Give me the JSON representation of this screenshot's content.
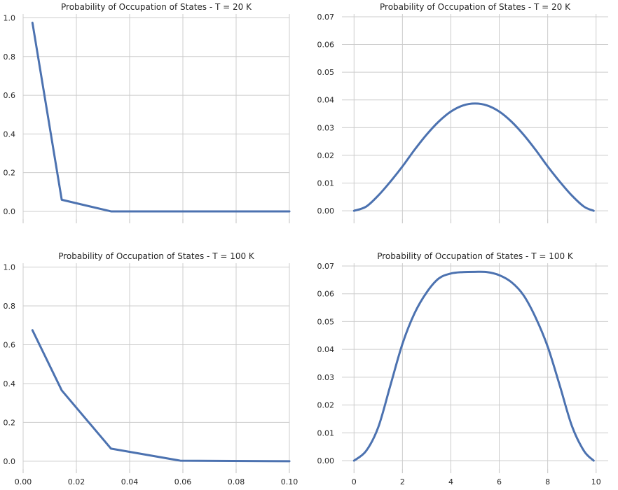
{
  "chart_data": [
    {
      "type": "line",
      "title": "Probability of Occupation of States - T = 20 K",
      "xlim": [
        0,
        0.1
      ],
      "ylim": [
        -0.04,
        1.02
      ],
      "x_ticks": [
        0,
        0.02,
        0.04,
        0.06,
        0.08,
        0.1
      ],
      "x_tick_labels": [],
      "y_ticks": [
        0.0,
        0.2,
        0.4,
        0.6,
        0.8,
        1.0
      ],
      "y_tick_labels": [
        "0.0",
        "0.2",
        "0.4",
        "0.6",
        "0.8",
        "1.0"
      ],
      "grid": true,
      "color": "#4c72b0",
      "x": [
        0.0035,
        0.0145,
        0.033,
        0.059,
        0.1
      ],
      "y": [
        0.975,
        0.06,
        0.0,
        0.0,
        0.0
      ]
    },
    {
      "type": "line",
      "title": "Probability of Occupation of States - T = 20 K",
      "xlim": [
        -0.5,
        10.5
      ],
      "ylim": [
        -0.003,
        0.071
      ],
      "x_ticks": [
        0,
        2,
        4,
        6,
        8,
        10
      ],
      "x_tick_labels": [],
      "y_ticks": [
        0.0,
        0.01,
        0.02,
        0.03,
        0.04,
        0.05,
        0.06,
        0.07
      ],
      "y_tick_labels": [
        "0.00",
        "0.01",
        "0.02",
        "0.03",
        "0.04",
        "0.05",
        "0.06",
        "0.07"
      ],
      "grid": true,
      "color": "#4c72b0",
      "x": [
        0,
        0.5,
        1,
        1.5,
        2,
        2.5,
        3,
        3.5,
        4,
        4.5,
        5,
        5.5,
        6,
        6.5,
        7,
        7.5,
        8,
        8.5,
        9,
        9.5,
        9.9
      ],
      "y": [
        0.0,
        0.0015,
        0.0055,
        0.0105,
        0.016,
        0.022,
        0.0275,
        0.0322,
        0.0358,
        0.038,
        0.0387,
        0.038,
        0.0358,
        0.0322,
        0.0275,
        0.022,
        0.016,
        0.0105,
        0.0055,
        0.0015,
        0.0
      ]
    },
    {
      "type": "line",
      "title": "Probability of Occupation of States - T = 100 K",
      "xlim": [
        0,
        0.1
      ],
      "ylim": [
        -0.04,
        1.02
      ],
      "x_ticks": [
        0,
        0.02,
        0.04,
        0.06,
        0.08,
        0.1
      ],
      "x_tick_labels": [
        "0.00",
        "0.02",
        "0.04",
        "0.06",
        "0.08",
        "0.10"
      ],
      "y_ticks": [
        0.0,
        0.2,
        0.4,
        0.6,
        0.8,
        1.0
      ],
      "y_tick_labels": [
        "0.0",
        "0.2",
        "0.4",
        "0.6",
        "0.8",
        "1.0"
      ],
      "grid": true,
      "color": "#4c72b0",
      "x": [
        0.0035,
        0.0145,
        0.033,
        0.059,
        0.1
      ],
      "y": [
        0.675,
        0.365,
        0.065,
        0.003,
        0.0
      ]
    },
    {
      "type": "line",
      "title": "Probability of Occupation of States - T = 100 K",
      "xlim": [
        -0.5,
        10.5
      ],
      "ylim": [
        -0.003,
        0.071
      ],
      "x_ticks": [
        0,
        2,
        4,
        6,
        8,
        10
      ],
      "x_tick_labels": [
        "0",
        "2",
        "4",
        "6",
        "8",
        "10"
      ],
      "y_ticks": [
        0.0,
        0.01,
        0.02,
        0.03,
        0.04,
        0.05,
        0.06,
        0.07
      ],
      "y_tick_labels": [
        "0.00",
        "0.01",
        "0.02",
        "0.03",
        "0.04",
        "0.05",
        "0.06",
        "0.07"
      ],
      "grid": true,
      "color": "#4c72b0",
      "x": [
        0,
        0.5,
        1,
        1.5,
        2,
        2.5,
        3,
        3.5,
        4,
        4.5,
        5,
        5.5,
        6,
        6.5,
        7,
        7.5,
        8,
        8.5,
        9,
        9.5,
        9.9
      ],
      "y": [
        0.0,
        0.0035,
        0.012,
        0.027,
        0.042,
        0.053,
        0.0605,
        0.0655,
        0.0673,
        0.0678,
        0.0679,
        0.0678,
        0.0667,
        0.0642,
        0.0595,
        0.0515,
        0.041,
        0.027,
        0.0125,
        0.0035,
        0.0
      ]
    }
  ]
}
